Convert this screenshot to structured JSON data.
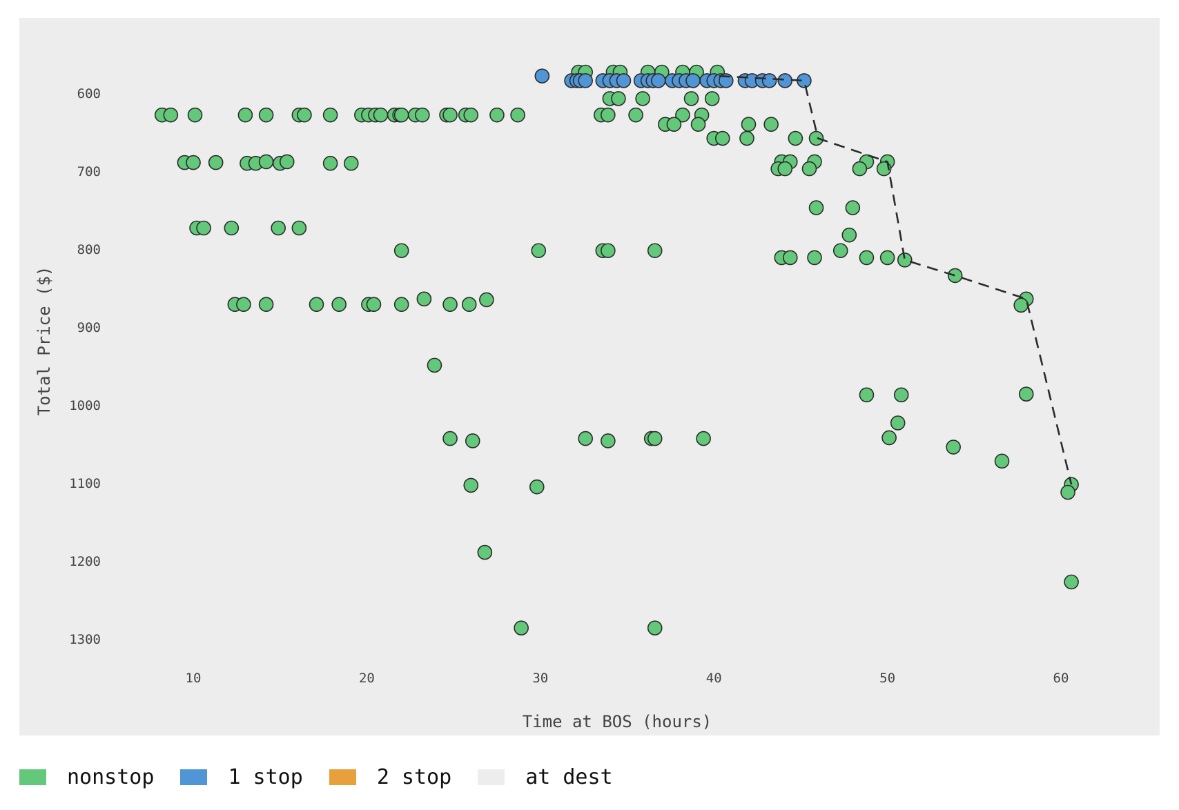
{
  "chart_data": {
    "type": "scatter",
    "title": "",
    "xlabel": "Time at BOS (hours)",
    "ylabel": "Total Price ($)",
    "xlim": [
      5,
      67
    ],
    "ylim": [
      1360,
      525
    ],
    "y_inverted": true,
    "grid": false,
    "x_ticks": [
      10,
      20,
      30,
      40,
      50,
      60
    ],
    "y_ticks": [
      600,
      700,
      800,
      900,
      1000,
      1100,
      1200,
      1300
    ],
    "legend_position": "bottom-left",
    "legend": [
      {
        "label": "nonstop",
        "color": "#63c879"
      },
      {
        "label": "1 stop",
        "color": "#5095d6"
      },
      {
        "label": "2 stop",
        "color": "#e8a03c"
      },
      {
        "label": "at dest",
        "color": "#ededed"
      }
    ],
    "series": [
      {
        "name": "nonstop",
        "color": "#63c879",
        "points": [
          [
            8.2,
            628
          ],
          [
            8.7,
            628
          ],
          [
            10.1,
            628
          ],
          [
            13.0,
            628
          ],
          [
            14.2,
            628
          ],
          [
            16.1,
            628
          ],
          [
            16.4,
            628
          ],
          [
            17.9,
            628
          ],
          [
            19.7,
            628
          ],
          [
            20.1,
            628
          ],
          [
            20.5,
            628
          ],
          [
            20.8,
            628
          ],
          [
            21.6,
            628
          ],
          [
            21.9,
            628
          ],
          [
            22.0,
            628
          ],
          [
            22.8,
            628
          ],
          [
            23.2,
            628
          ],
          [
            24.6,
            628
          ],
          [
            24.8,
            628
          ],
          [
            25.7,
            628
          ],
          [
            26.0,
            628
          ],
          [
            27.5,
            628
          ],
          [
            28.7,
            628
          ],
          [
            9.5,
            689
          ],
          [
            10.0,
            689
          ],
          [
            11.3,
            689
          ],
          [
            13.1,
            690
          ],
          [
            13.6,
            690
          ],
          [
            14.2,
            688
          ],
          [
            15.0,
            690
          ],
          [
            15.4,
            688
          ],
          [
            17.9,
            690
          ],
          [
            19.1,
            690
          ],
          [
            10.2,
            773
          ],
          [
            10.6,
            773
          ],
          [
            12.2,
            773
          ],
          [
            14.9,
            773
          ],
          [
            16.1,
            773
          ],
          [
            22.0,
            802
          ],
          [
            29.9,
            802
          ],
          [
            33.6,
            802
          ],
          [
            33.9,
            802
          ],
          [
            36.6,
            802
          ],
          [
            12.4,
            871
          ],
          [
            12.9,
            871
          ],
          [
            14.2,
            871
          ],
          [
            17.1,
            871
          ],
          [
            18.4,
            871
          ],
          [
            20.1,
            871
          ],
          [
            20.4,
            871
          ],
          [
            22.0,
            871
          ],
          [
            23.3,
            864
          ],
          [
            24.8,
            871
          ],
          [
            25.9,
            871
          ],
          [
            26.9,
            865
          ],
          [
            23.9,
            949
          ],
          [
            24.8,
            1043
          ],
          [
            26.1,
            1046
          ],
          [
            32.6,
            1043
          ],
          [
            33.9,
            1046
          ],
          [
            36.4,
            1043
          ],
          [
            36.6,
            1043
          ],
          [
            39.4,
            1043
          ],
          [
            26.0,
            1103
          ],
          [
            29.8,
            1105
          ],
          [
            26.8,
            1189
          ],
          [
            28.9,
            1286
          ],
          [
            36.6,
            1286
          ],
          [
            32.2,
            573
          ],
          [
            32.6,
            573
          ],
          [
            34.2,
            573
          ],
          [
            34.6,
            573
          ],
          [
            36.2,
            573
          ],
          [
            37.0,
            573
          ],
          [
            38.2,
            573
          ],
          [
            39.0,
            573
          ],
          [
            40.2,
            573
          ],
          [
            34.0,
            607
          ],
          [
            34.5,
            607
          ],
          [
            35.9,
            607
          ],
          [
            38.7,
            607
          ],
          [
            39.9,
            607
          ],
          [
            33.5,
            628
          ],
          [
            33.9,
            628
          ],
          [
            35.5,
            628
          ],
          [
            38.2,
            628
          ],
          [
            39.3,
            628
          ],
          [
            37.2,
            640
          ],
          [
            37.7,
            640
          ],
          [
            39.1,
            640
          ],
          [
            42.0,
            640
          ],
          [
            43.3,
            640
          ],
          [
            40.0,
            658
          ],
          [
            40.5,
            658
          ],
          [
            41.9,
            658
          ],
          [
            44.7,
            658
          ],
          [
            45.9,
            658
          ],
          [
            43.9,
            688
          ],
          [
            44.4,
            688
          ],
          [
            45.8,
            688
          ],
          [
            48.8,
            688
          ],
          [
            50.0,
            688
          ],
          [
            43.7,
            697
          ],
          [
            44.1,
            697
          ],
          [
            45.5,
            697
          ],
          [
            48.4,
            697
          ],
          [
            49.8,
            697
          ],
          [
            45.9,
            747
          ],
          [
            48.0,
            747
          ],
          [
            47.8,
            782
          ],
          [
            47.3,
            802
          ],
          [
            43.9,
            811
          ],
          [
            44.4,
            811
          ],
          [
            45.8,
            811
          ],
          [
            48.8,
            811
          ],
          [
            50.0,
            811
          ],
          [
            51.0,
            814
          ],
          [
            53.9,
            834
          ],
          [
            58.0,
            864
          ],
          [
            57.7,
            872
          ],
          [
            48.8,
            987
          ],
          [
            50.8,
            987
          ],
          [
            58.0,
            986
          ],
          [
            50.6,
            1023
          ],
          [
            50.1,
            1042
          ],
          [
            53.8,
            1054
          ],
          [
            56.6,
            1072
          ],
          [
            60.6,
            1102
          ],
          [
            60.4,
            1112
          ],
          [
            60.6,
            1227
          ]
        ]
      },
      {
        "name": "1 stop",
        "color": "#5095d6",
        "points": [
          [
            30.1,
            578
          ],
          [
            31.8,
            584
          ],
          [
            32.1,
            584
          ],
          [
            32.3,
            584
          ],
          [
            32.6,
            584
          ],
          [
            33.6,
            584
          ],
          [
            34.0,
            584
          ],
          [
            34.4,
            584
          ],
          [
            34.8,
            584
          ],
          [
            35.8,
            584
          ],
          [
            36.2,
            584
          ],
          [
            36.5,
            584
          ],
          [
            36.8,
            584
          ],
          [
            37.6,
            584
          ],
          [
            38.0,
            584
          ],
          [
            38.4,
            584
          ],
          [
            38.8,
            584
          ],
          [
            39.6,
            584
          ],
          [
            40.0,
            584
          ],
          [
            40.4,
            584
          ],
          [
            40.7,
            584
          ],
          [
            41.8,
            584
          ],
          [
            42.2,
            584
          ],
          [
            42.8,
            584
          ],
          [
            43.2,
            584
          ],
          [
            44.1,
            584
          ],
          [
            45.2,
            584
          ]
        ]
      },
      {
        "name": "2 stop",
        "color": "#e8a03c",
        "points": []
      }
    ],
    "frontier_line": {
      "style": "dashed",
      "color": "#2b2b2b",
      "points": [
        [
          40.3,
          578
        ],
        [
          45.2,
          584
        ],
        [
          46.0,
          658
        ],
        [
          50.0,
          688
        ],
        [
          51.0,
          814
        ],
        [
          53.9,
          834
        ],
        [
          58.0,
          864
        ],
        [
          60.6,
          1102
        ]
      ]
    }
  },
  "legend": {
    "items": [
      {
        "label": "nonstop",
        "color": "#63c879"
      },
      {
        "label": "1 stop",
        "color": "#5095d6"
      },
      {
        "label": "2 stop",
        "color": "#e8a03c"
      },
      {
        "label": "at dest",
        "color": "#ededed"
      }
    ]
  }
}
